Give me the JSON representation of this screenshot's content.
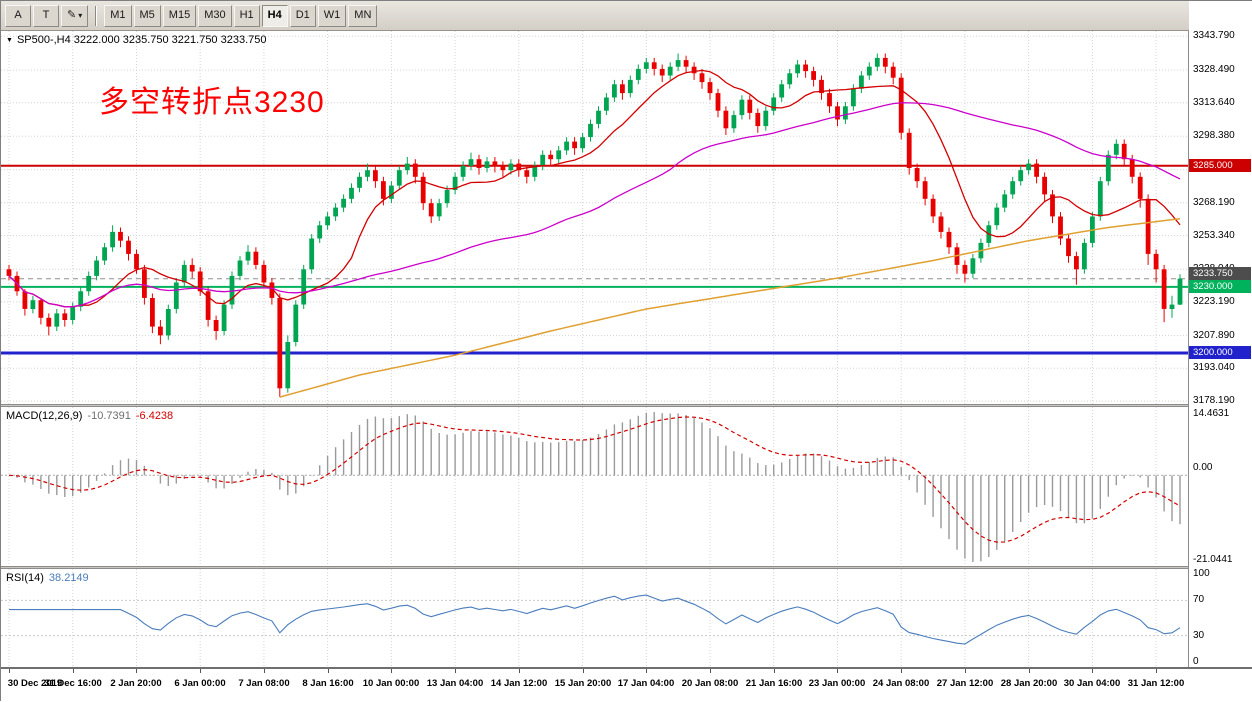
{
  "toolbar": {
    "tool_a": "A",
    "tool_t": "T",
    "draw_dropdown_icon": "pencil-dropdown",
    "timeframes": [
      "M1",
      "M5",
      "M15",
      "M30",
      "H1",
      "H4",
      "D1",
      "W1",
      "MN"
    ],
    "active_timeframe": "H4"
  },
  "chart": {
    "symbol_label": "SP500-,H4 3222.000 3235.750 3221.750 3233.750",
    "annotation": {
      "text": "多空转折点3230",
      "color": "#ff0000"
    },
    "price_scale_labels": [
      "3343.790",
      "3328.490",
      "3313.640",
      "3298.380",
      "3283.190",
      "3268.190",
      "3253.340",
      "3238.040",
      "3223.190",
      "3207.890",
      "3193.040",
      "3178.190"
    ],
    "hlines": [
      {
        "value": 3285.0,
        "label": "3285.000",
        "color": "#cc0000",
        "width": 2
      },
      {
        "value": 3230.0,
        "label": "3230.000",
        "color": "#00b25b",
        "width": 2
      },
      {
        "value": 3200.0,
        "label": "3200.000",
        "color": "#2222cc",
        "width": 3
      }
    ],
    "current_price": {
      "value": 3233.75,
      "label": "3233.750",
      "color": "#4d4d4d"
    },
    "colors": {
      "bull": "#00a551",
      "bear": "#e80000",
      "ma_fast": "#d40000",
      "ma_mid": "#cc00cc",
      "ma_slow": "#e0a030",
      "grid": "#d4d4d4"
    }
  },
  "chart_data": {
    "type": "candlestick",
    "symbol": "SP500-",
    "timeframe": "H4",
    "x_labels": [
      "30 Dec 2019",
      "31 Dec 16:00",
      "2 Jan 20:00",
      "6 Jan 00:00",
      "7 Jan 08:00",
      "8 Jan 16:00",
      "10 Jan 00:00",
      "13 Jan 04:00",
      "14 Jan 12:00",
      "15 Jan 20:00",
      "17 Jan 04:00",
      "20 Jan 08:00",
      "21 Jan 16:00",
      "23 Jan 00:00",
      "24 Jan 08:00",
      "27 Jan 12:00",
      "28 Jan 20:00",
      "30 Jan 04:00",
      "31 Jan 12:00"
    ],
    "x_label_step": 8,
    "y_range": [
      3176.4,
      3346.2
    ],
    "candles_ohlc": [
      [
        3238,
        3240,
        3233,
        3235
      ],
      [
        3235,
        3237,
        3226,
        3228
      ],
      [
        3228,
        3229,
        3217,
        3220
      ],
      [
        3220,
        3226,
        3218,
        3224
      ],
      [
        3224,
        3225,
        3213,
        3216
      ],
      [
        3216,
        3218,
        3208,
        3212
      ],
      [
        3212,
        3220,
        3210,
        3218
      ],
      [
        3218,
        3220,
        3212,
        3215
      ],
      [
        3215,
        3223,
        3213,
        3221
      ],
      [
        3221,
        3230,
        3219,
        3228
      ],
      [
        3228,
        3237,
        3226,
        3235
      ],
      [
        3235,
        3244,
        3233,
        3242
      ],
      [
        3242,
        3250,
        3240,
        3248
      ],
      [
        3248,
        3258,
        3246,
        3255
      ],
      [
        3255,
        3257,
        3248,
        3251
      ],
      [
        3251,
        3253,
        3242,
        3245
      ],
      [
        3245,
        3247,
        3236,
        3238
      ],
      [
        3238,
        3240,
        3222,
        3225
      ],
      [
        3225,
        3227,
        3209,
        3212
      ],
      [
        3212,
        3215,
        3204,
        3208
      ],
      [
        3208,
        3222,
        3206,
        3220
      ],
      [
        3220,
        3234,
        3218,
        3232
      ],
      [
        3232,
        3242,
        3230,
        3240
      ],
      [
        3240,
        3243,
        3234,
        3237
      ],
      [
        3237,
        3239,
        3226,
        3228
      ],
      [
        3228,
        3230,
        3212,
        3215
      ],
      [
        3215,
        3217,
        3206,
        3210
      ],
      [
        3210,
        3224,
        3208,
        3222
      ],
      [
        3222,
        3237,
        3220,
        3235
      ],
      [
        3235,
        3244,
        3233,
        3242
      ],
      [
        3242,
        3249,
        3240,
        3246
      ],
      [
        3246,
        3248,
        3238,
        3240
      ],
      [
        3240,
        3242,
        3230,
        3232
      ],
      [
        3232,
        3234,
        3222,
        3225
      ],
      [
        3225,
        3227,
        3180,
        3184
      ],
      [
        3184,
        3208,
        3182,
        3205
      ],
      [
        3205,
        3224,
        3203,
        3222
      ],
      [
        3222,
        3240,
        3220,
        3238
      ],
      [
        3238,
        3254,
        3236,
        3252
      ],
      [
        3252,
        3260,
        3250,
        3258
      ],
      [
        3258,
        3264,
        3256,
        3262
      ],
      [
        3262,
        3268,
        3260,
        3266
      ],
      [
        3266,
        3272,
        3264,
        3270
      ],
      [
        3270,
        3277,
        3268,
        3275
      ],
      [
        3275,
        3282,
        3273,
        3280
      ],
      [
        3280,
        3286,
        3278,
        3283
      ],
      [
        3283,
        3285,
        3275,
        3278
      ],
      [
        3278,
        3280,
        3267,
        3270
      ],
      [
        3270,
        3278,
        3268,
        3276
      ],
      [
        3276,
        3285,
        3274,
        3283
      ],
      [
        3283,
        3289,
        3281,
        3286
      ],
      [
        3286,
        3288,
        3277,
        3280
      ],
      [
        3280,
        3282,
        3265,
        3268
      ],
      [
        3268,
        3270,
        3259,
        3262
      ],
      [
        3262,
        3270,
        3260,
        3268
      ],
      [
        3268,
        3276,
        3266,
        3274
      ],
      [
        3274,
        3282,
        3272,
        3280
      ],
      [
        3280,
        3287,
        3278,
        3285
      ],
      [
        3285,
        3291,
        3283,
        3288
      ],
      [
        3288,
        3290,
        3281,
        3284
      ],
      [
        3284,
        3289,
        3282,
        3287
      ],
      [
        3287,
        3289,
        3282,
        3285
      ],
      [
        3285,
        3287,
        3280,
        3283
      ],
      [
        3283,
        3288,
        3281,
        3286
      ],
      [
        3286,
        3288,
        3280,
        3283
      ],
      [
        3283,
        3285,
        3277,
        3280
      ],
      [
        3280,
        3287,
        3278,
        3285
      ],
      [
        3285,
        3292,
        3283,
        3290
      ],
      [
        3290,
        3292,
        3285,
        3288
      ],
      [
        3288,
        3294,
        3286,
        3292
      ],
      [
        3292,
        3298,
        3290,
        3296
      ],
      [
        3296,
        3298,
        3290,
        3293
      ],
      [
        3293,
        3300,
        3291,
        3298
      ],
      [
        3298,
        3306,
        3296,
        3304
      ],
      [
        3304,
        3312,
        3302,
        3310
      ],
      [
        3310,
        3318,
        3308,
        3316
      ],
      [
        3316,
        3324,
        3314,
        3322
      ],
      [
        3322,
        3324,
        3315,
        3318
      ],
      [
        3318,
        3326,
        3316,
        3324
      ],
      [
        3324,
        3331,
        3322,
        3329
      ],
      [
        3329,
        3334,
        3327,
        3332
      ],
      [
        3332,
        3334,
        3326,
        3329
      ],
      [
        3329,
        3331,
        3323,
        3326
      ],
      [
        3326,
        3332,
        3324,
        3330
      ],
      [
        3330,
        3336,
        3328,
        3333
      ],
      [
        3333,
        3335,
        3327,
        3330
      ],
      [
        3330,
        3332,
        3324,
        3327
      ],
      [
        3327,
        3329,
        3320,
        3323
      ],
      [
        3323,
        3325,
        3315,
        3318
      ],
      [
        3318,
        3320,
        3307,
        3310
      ],
      [
        3310,
        3312,
        3299,
        3302
      ],
      [
        3302,
        3310,
        3300,
        3308
      ],
      [
        3308,
        3317,
        3306,
        3315
      ],
      [
        3315,
        3317,
        3306,
        3309
      ],
      [
        3309,
        3311,
        3300,
        3303
      ],
      [
        3303,
        3312,
        3301,
        3310
      ],
      [
        3310,
        3318,
        3308,
        3316
      ],
      [
        3316,
        3324,
        3314,
        3322
      ],
      [
        3322,
        3329,
        3320,
        3327
      ],
      [
        3327,
        3333,
        3325,
        3331
      ],
      [
        3331,
        3333,
        3325,
        3328
      ],
      [
        3328,
        3330,
        3321,
        3324
      ],
      [
        3324,
        3326,
        3315,
        3318
      ],
      [
        3318,
        3320,
        3309,
        3312
      ],
      [
        3312,
        3314,
        3303,
        3306
      ],
      [
        3306,
        3314,
        3304,
        3312
      ],
      [
        3312,
        3322,
        3310,
        3320
      ],
      [
        3320,
        3328,
        3318,
        3326
      ],
      [
        3326,
        3332,
        3324,
        3330
      ],
      [
        3330,
        3336,
        3328,
        3334
      ],
      [
        3334,
        3336,
        3327,
        3330
      ],
      [
        3330,
        3332,
        3322,
        3325
      ],
      [
        3325,
        3327,
        3297,
        3300
      ],
      [
        3300,
        3302,
        3281,
        3284
      ],
      [
        3284,
        3286,
        3275,
        3278
      ],
      [
        3278,
        3280,
        3267,
        3270
      ],
      [
        3270,
        3272,
        3259,
        3262
      ],
      [
        3262,
        3264,
        3252,
        3255
      ],
      [
        3255,
        3257,
        3245,
        3248
      ],
      [
        3248,
        3250,
        3236,
        3240
      ],
      [
        3240,
        3242,
        3232,
        3236
      ],
      [
        3236,
        3245,
        3234,
        3243
      ],
      [
        3243,
        3252,
        3241,
        3250
      ],
      [
        3250,
        3260,
        3248,
        3258
      ],
      [
        3258,
        3268,
        3256,
        3266
      ],
      [
        3266,
        3274,
        3264,
        3272
      ],
      [
        3272,
        3280,
        3270,
        3278
      ],
      [
        3278,
        3285,
        3276,
        3283
      ],
      [
        3283,
        3288,
        3281,
        3286
      ],
      [
        3286,
        3288,
        3277,
        3280
      ],
      [
        3280,
        3282,
        3269,
        3272
      ],
      [
        3272,
        3274,
        3259,
        3262
      ],
      [
        3262,
        3264,
        3249,
        3252
      ],
      [
        3252,
        3254,
        3241,
        3244
      ],
      [
        3244,
        3246,
        3231,
        3238
      ],
      [
        3238,
        3252,
        3236,
        3250
      ],
      [
        3250,
        3264,
        3248,
        3262
      ],
      [
        3262,
        3280,
        3260,
        3278
      ],
      [
        3278,
        3292,
        3276,
        3290
      ],
      [
        3290,
        3297,
        3288,
        3295
      ],
      [
        3295,
        3297,
        3285,
        3288
      ],
      [
        3288,
        3290,
        3277,
        3280
      ],
      [
        3280,
        3282,
        3266,
        3270
      ],
      [
        3270,
        3272,
        3240,
        3245
      ],
      [
        3245,
        3247,
        3232,
        3238
      ],
      [
        3238,
        3240,
        3214,
        3220
      ],
      [
        3220,
        3226,
        3216,
        3222
      ],
      [
        3222,
        3235.75,
        3221.75,
        3233.75
      ]
    ],
    "ma_fast_period": 10,
    "ma_mid_period": 50,
    "ma_slow_points": [
      [
        34,
        3180
      ],
      [
        44,
        3190
      ],
      [
        56,
        3199
      ],
      [
        68,
        3210
      ],
      [
        80,
        3220
      ],
      [
        92,
        3227
      ],
      [
        104,
        3234
      ],
      [
        116,
        3242
      ],
      [
        128,
        3251
      ],
      [
        138,
        3257
      ],
      [
        147,
        3261
      ]
    ]
  },
  "macd": {
    "label": "MACD(12,26,9)",
    "value_main": "-10.7391",
    "value_signal": "-6.4238",
    "scale_labels": [
      "14.4631",
      "0.00",
      "-21.0441"
    ],
    "range": [
      -21.0441,
      14.4631
    ],
    "fast": 12,
    "slow": 26,
    "signal": 9,
    "histogram_color": "#9a9a9a",
    "signal_color": "#d40000"
  },
  "rsi": {
    "label": "RSI(14)",
    "value": "38.2149",
    "period": 14,
    "scale_labels": [
      "100",
      "70",
      "30",
      "0"
    ],
    "scale_values": [
      100,
      70,
      30,
      0
    ],
    "levels": [
      70,
      30
    ],
    "line_color": "#4a7dbd"
  }
}
